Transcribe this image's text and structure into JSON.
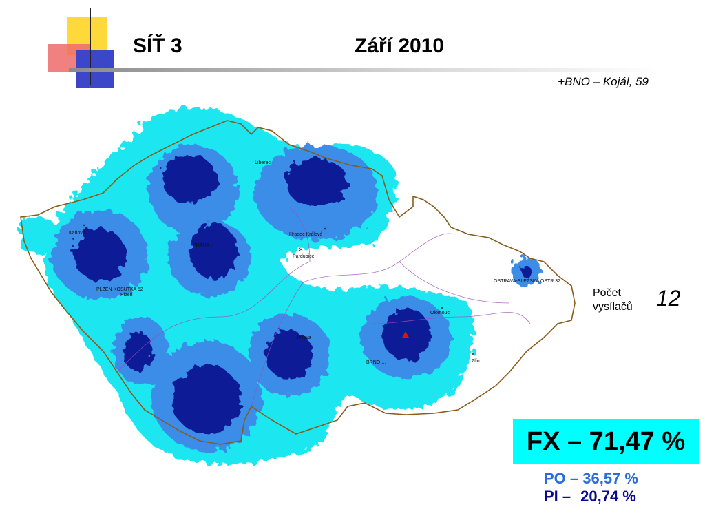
{
  "slide": {
    "title_left": "SÍŤ 3",
    "title_right": "Září 2010",
    "source": "+BNO – Kojál, 59",
    "transmitter_count_label_line1": "Počet",
    "transmitter_count_label_line2": "vysílačů",
    "transmitter_count": "12",
    "fx_label": "FX – 71,47 %",
    "po_label": "PO – 36,57 %",
    "pi_prefix": "PI –",
    "pi_value": "20,74 %"
  },
  "map": {
    "place_labels": [
      "Liberec",
      "Karlovy",
      "Hradec Králové",
      "Pardubice",
      "PLZEN-KOSUTKA 52",
      "Plzeň",
      "PRAHA...",
      "Olomouc",
      "Zlín",
      "BRNO-...",
      "OSTRAVA-SLEZSKA OSTR 32",
      "Jihlava"
    ],
    "coverage_colors": {
      "weak": "#1fe6f0",
      "medium": "#3b8de8",
      "strong": "#0c1c96"
    }
  }
}
